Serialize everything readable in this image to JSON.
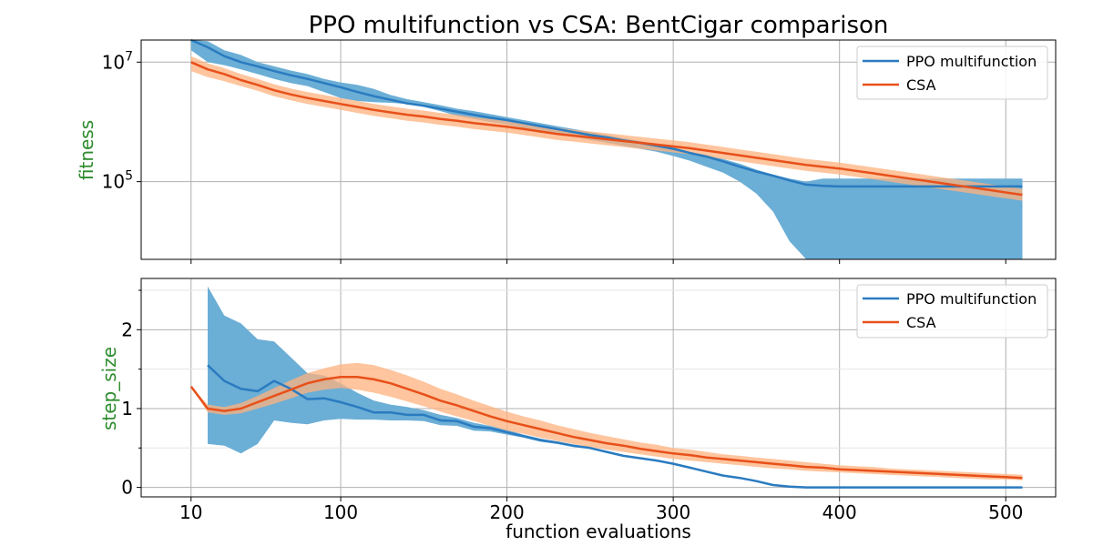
{
  "chart_data": {
    "type": "line",
    "title": "PPO multifunction vs CSA: BentCigar comparison",
    "xlabel": "function evaluations",
    "x_ticks": [
      "10",
      "100",
      "200",
      "300",
      "400",
      "500"
    ],
    "xlim": [
      -20,
      530
    ],
    "grid": true,
    "legend_position": "top-right",
    "colors": {
      "ppo": "#2a7bc0",
      "ppo_band": "#6baed6",
      "csa": "#e8501a",
      "csa_band": "#fdb27e",
      "ylabel": "#2e8b2e"
    },
    "panels": [
      {
        "ylabel": "fitness",
        "yscale": "log",
        "ylim_log10": [
          5.55,
          7.0
        ],
        "y_ticks": [
          {
            "base": "10",
            "exp": "7"
          },
          {
            "base": "10",
            "exp": "5"
          }
        ],
        "series": [
          {
            "name": "PPO multifunction",
            "x": [
              10,
              20,
              30,
              40,
              50,
              60,
              70,
              80,
              90,
              100,
              110,
              120,
              130,
              140,
              150,
              160,
              170,
              180,
              190,
              200,
              210,
              220,
              230,
              240,
              250,
              260,
              270,
              280,
              290,
              300,
              310,
              320,
              330,
              340,
              350,
              360,
              370,
              380,
              390,
              400,
              410,
              420,
              430,
              440,
              450,
              460,
              470,
              480,
              490,
              500,
              510
            ],
            "mean_log10": [
              7.4,
              7.25,
              7.1,
              7.0,
              6.93,
              6.85,
              6.78,
              6.72,
              6.65,
              6.58,
              6.5,
              6.43,
              6.37,
              6.31,
              6.27,
              6.22,
              6.17,
              6.12,
              6.07,
              6.03,
              5.98,
              5.93,
              5.88,
              5.83,
              5.78,
              5.74,
              5.69,
              5.65,
              5.6,
              5.55,
              5.48,
              5.42,
              5.34,
              5.25,
              5.17,
              5.1,
              5.02,
              4.95,
              4.93,
              4.92,
              4.92,
              4.92,
              4.92,
              4.92,
              4.92,
              4.92,
              4.92,
              4.92,
              4.92,
              4.92,
              4.92
            ],
            "upper_log10": [
              7.45,
              7.35,
              7.2,
              7.12,
              7.0,
              6.93,
              6.86,
              6.8,
              6.72,
              6.66,
              6.62,
              6.55,
              6.45,
              6.38,
              6.33,
              6.28,
              6.22,
              6.18,
              6.13,
              6.08,
              6.03,
              5.98,
              5.93,
              5.88,
              5.83,
              5.78,
              5.73,
              5.68,
              5.63,
              5.58,
              5.5,
              5.45,
              5.38,
              5.3,
              5.2,
              5.12,
              5.05,
              5.0,
              5.05,
              5.05,
              5.05,
              5.05,
              5.05,
              5.05,
              5.05,
              5.05,
              5.05,
              5.05,
              5.05,
              5.05,
              5.05
            ],
            "lower_log10": [
              7.2,
              7.0,
              6.95,
              6.88,
              6.8,
              6.72,
              6.65,
              6.6,
              6.5,
              6.4,
              6.35,
              6.33,
              6.32,
              6.3,
              6.25,
              6.18,
              6.1,
              6.05,
              6.0,
              5.96,
              5.9,
              5.85,
              5.8,
              5.75,
              5.7,
              5.65,
              5.6,
              5.55,
              5.5,
              5.43,
              5.35,
              5.25,
              5.15,
              5.0,
              4.8,
              4.5,
              4.0,
              3.5,
              3.0,
              3.0,
              3.0,
              3.0,
              3.0,
              3.0,
              3.0,
              3.0,
              3.0,
              3.0,
              3.0,
              3.0,
              3.0
            ]
          },
          {
            "name": "CSA",
            "x": [
              10,
              20,
              30,
              40,
              50,
              60,
              70,
              80,
              90,
              100,
              110,
              120,
              130,
              140,
              150,
              160,
              170,
              180,
              190,
              200,
              210,
              220,
              230,
              240,
              250,
              260,
              270,
              280,
              290,
              300,
              310,
              320,
              330,
              340,
              350,
              360,
              370,
              380,
              390,
              400,
              410,
              420,
              430,
              440,
              450,
              460,
              470,
              480,
              490,
              500,
              510
            ],
            "mean_log10": [
              7.0,
              6.88,
              6.8,
              6.7,
              6.62,
              6.53,
              6.46,
              6.4,
              6.35,
              6.3,
              6.25,
              6.2,
              6.16,
              6.12,
              6.09,
              6.05,
              6.02,
              5.98,
              5.95,
              5.92,
              5.88,
              5.84,
              5.8,
              5.77,
              5.74,
              5.71,
              5.68,
              5.65,
              5.62,
              5.59,
              5.56,
              5.52,
              5.48,
              5.44,
              5.4,
              5.36,
              5.32,
              5.28,
              5.25,
              5.22,
              5.18,
              5.14,
              5.1,
              5.06,
              5.02,
              4.98,
              4.94,
              4.9,
              4.86,
              4.82,
              4.78
            ],
            "upper_log10": [
              7.1,
              6.98,
              6.9,
              6.8,
              6.72,
              6.63,
              6.56,
              6.5,
              6.45,
              6.4,
              6.35,
              6.3,
              6.26,
              6.22,
              6.19,
              6.15,
              6.12,
              6.08,
              6.05,
              6.02,
              5.98,
              5.94,
              5.9,
              5.87,
              5.84,
              5.81,
              5.78,
              5.75,
              5.72,
              5.69,
              5.66,
              5.62,
              5.58,
              5.54,
              5.5,
              5.46,
              5.42,
              5.38,
              5.35,
              5.32,
              5.28,
              5.24,
              5.2,
              5.16,
              5.12,
              5.08,
              5.04,
              5.0,
              4.96,
              4.92,
              4.88
            ],
            "lower_log10": [
              6.85,
              6.75,
              6.68,
              6.6,
              6.52,
              6.43,
              6.36,
              6.3,
              6.25,
              6.2,
              6.15,
              6.1,
              6.06,
              6.02,
              5.99,
              5.95,
              5.92,
              5.88,
              5.85,
              5.82,
              5.78,
              5.74,
              5.7,
              5.67,
              5.64,
              5.61,
              5.58,
              5.55,
              5.52,
              5.49,
              5.46,
              5.42,
              5.38,
              5.34,
              5.3,
              5.26,
              5.22,
              5.18,
              5.15,
              5.12,
              5.08,
              5.04,
              5.0,
              4.96,
              4.92,
              4.88,
              4.84,
              4.8,
              4.76,
              4.72,
              4.68
            ]
          }
        ]
      },
      {
        "ylabel": "step_size",
        "yscale": "linear",
        "ylim": [
          -0.12,
          2.65
        ],
        "y_ticks": [
          "0",
          "1",
          "2"
        ],
        "series": [
          {
            "name": "PPO multifunction",
            "x": [
              20,
              30,
              40,
              50,
              60,
              70,
              80,
              90,
              100,
              110,
              120,
              130,
              140,
              150,
              160,
              170,
              180,
              190,
              200,
              210,
              220,
              230,
              240,
              250,
              260,
              270,
              280,
              290,
              300,
              310,
              320,
              330,
              340,
              350,
              360,
              370,
              380,
              390,
              400,
              410,
              420,
              430,
              440,
              450,
              460,
              470,
              480,
              490,
              500,
              510
            ],
            "mean": [
              1.55,
              1.35,
              1.25,
              1.22,
              1.35,
              1.25,
              1.12,
              1.13,
              1.08,
              1.02,
              0.95,
              0.95,
              0.92,
              0.92,
              0.85,
              0.84,
              0.77,
              0.75,
              0.7,
              0.65,
              0.6,
              0.57,
              0.53,
              0.5,
              0.45,
              0.4,
              0.37,
              0.34,
              0.3,
              0.25,
              0.2,
              0.15,
              0.12,
              0.08,
              0.03,
              0.01,
              0.0,
              0.0,
              0.0,
              0.0,
              0.0,
              0.0,
              0.0,
              0.0,
              0.0,
              0.0,
              0.0,
              0.0,
              0.0,
              0.0
            ],
            "upper": [
              2.55,
              2.18,
              2.08,
              1.88,
              1.85,
              1.65,
              1.45,
              1.42,
              1.32,
              1.2,
              1.1,
              1.05,
              1.02,
              0.98,
              0.92,
              0.88,
              0.82,
              0.78,
              0.73,
              0.67,
              0.62,
              0.58,
              0.54,
              0.51,
              0.46,
              0.41,
              0.38,
              0.35,
              0.31,
              0.26,
              0.21,
              0.16,
              0.13,
              0.09,
              0.04,
              0.015,
              0.005,
              0.0,
              0.0,
              0.0,
              0.0,
              0.0,
              0.0,
              0.0,
              0.0,
              0.0,
              0.0,
              0.0,
              0.0,
              0.0
            ],
            "lower": [
              0.55,
              0.53,
              0.43,
              0.55,
              0.85,
              0.82,
              0.8,
              0.85,
              0.87,
              0.86,
              0.86,
              0.85,
              0.85,
              0.84,
              0.79,
              0.78,
              0.72,
              0.71,
              0.67,
              0.63,
              0.58,
              0.55,
              0.51,
              0.49,
              0.44,
              0.39,
              0.36,
              0.33,
              0.29,
              0.24,
              0.19,
              0.14,
              0.11,
              0.07,
              0.02,
              0.0,
              0.0,
              0.0,
              0.0,
              0.0,
              0.0,
              0.0,
              0.0,
              0.0,
              0.0,
              0.0,
              0.0,
              0.0,
              0.0,
              0.0
            ]
          },
          {
            "name": "CSA",
            "x": [
              10,
              20,
              30,
              40,
              50,
              60,
              70,
              80,
              90,
              100,
              110,
              120,
              130,
              140,
              150,
              160,
              170,
              180,
              190,
              200,
              210,
              220,
              230,
              240,
              250,
              260,
              270,
              280,
              290,
              300,
              310,
              320,
              330,
              340,
              350,
              360,
              370,
              380,
              390,
              400,
              410,
              420,
              430,
              440,
              450,
              460,
              470,
              480,
              490,
              500,
              510
            ],
            "mean": [
              1.28,
              1.0,
              0.97,
              1.0,
              1.08,
              1.16,
              1.24,
              1.32,
              1.37,
              1.4,
              1.4,
              1.37,
              1.32,
              1.25,
              1.18,
              1.1,
              1.04,
              0.97,
              0.9,
              0.84,
              0.79,
              0.74,
              0.69,
              0.64,
              0.6,
              0.56,
              0.53,
              0.49,
              0.46,
              0.43,
              0.41,
              0.38,
              0.36,
              0.34,
              0.32,
              0.3,
              0.28,
              0.26,
              0.25,
              0.23,
              0.22,
              0.21,
              0.2,
              0.19,
              0.18,
              0.17,
              0.16,
              0.15,
              0.14,
              0.13,
              0.12
            ],
            "upper": [
              1.28,
              1.05,
              1.02,
              1.07,
              1.16,
              1.26,
              1.36,
              1.45,
              1.51,
              1.56,
              1.58,
              1.55,
              1.49,
              1.42,
              1.34,
              1.25,
              1.18,
              1.1,
              1.03,
              0.96,
              0.9,
              0.85,
              0.79,
              0.74,
              0.69,
              0.65,
              0.61,
              0.57,
              0.54,
              0.5,
              0.48,
              0.45,
              0.42,
              0.4,
              0.38,
              0.36,
              0.34,
              0.32,
              0.3,
              0.28,
              0.27,
              0.26,
              0.24,
              0.23,
              0.22,
              0.21,
              0.2,
              0.19,
              0.18,
              0.17,
              0.16
            ],
            "lower": [
              1.28,
              0.95,
              0.92,
              0.94,
              1.0,
              1.06,
              1.13,
              1.2,
              1.24,
              1.26,
              1.24,
              1.2,
              1.15,
              1.09,
              1.03,
              0.96,
              0.9,
              0.84,
              0.78,
              0.72,
              0.68,
              0.63,
              0.59,
              0.55,
              0.51,
              0.48,
              0.45,
              0.42,
              0.39,
              0.36,
              0.34,
              0.32,
              0.3,
              0.28,
              0.26,
              0.24,
              0.23,
              0.21,
              0.2,
              0.19,
              0.18,
              0.17,
              0.16,
              0.15,
              0.14,
              0.13,
              0.12,
              0.11,
              0.1,
              0.1,
              0.09
            ]
          }
        ]
      }
    ]
  }
}
